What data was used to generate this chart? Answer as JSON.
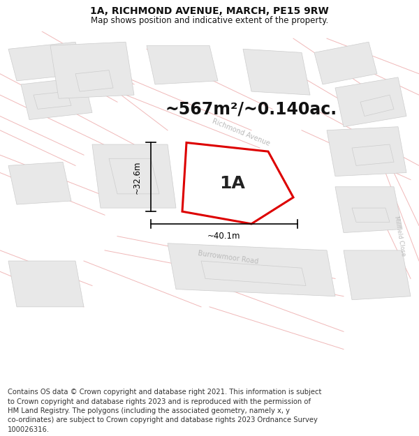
{
  "title": "1A, RICHMOND AVENUE, MARCH, PE15 9RW",
  "subtitle": "Map shows position and indicative extent of the property.",
  "area_text": "~567m²/~0.140ac.",
  "label_1a": "1A",
  "dim_width": "~40.1m",
  "dim_height": "~32.6m",
  "map_bg": "#ffffff",
  "block_fill": "#e8e8e8",
  "block_edge": "#cccccc",
  "road_color": "#f0b8b8",
  "plot_fill": "#ffffff",
  "plot_stroke": "#dd0000",
  "title_fontsize": 10,
  "subtitle_fontsize": 8.5,
  "footer_fontsize": 7.2,
  "area_fontsize": 17,
  "label_fontsize": 18,
  "dim_fontsize": 8.5,
  "road_label_color": "#bbbbbb",
  "footer_lines": [
    "Contains OS data © Crown copyright and database right 2021. This information is subject",
    "to Crown copyright and database rights 2023 and is reproduced with the permission of",
    "HM Land Registry. The polygons (including the associated geometry, namely x, y",
    "co-ordinates) are subject to Crown copyright and database rights 2023 Ordnance Survey",
    "100026316."
  ]
}
